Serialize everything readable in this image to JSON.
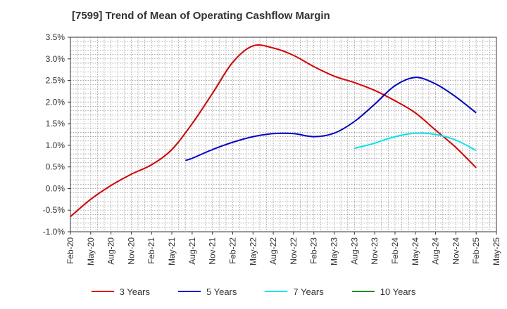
{
  "chart_data": {
    "type": "line",
    "title": "[7599]  Trend of Mean of Operating Cashflow Margin",
    "xlabel": "",
    "ylabel": "",
    "ylim": [
      -1.0,
      3.5
    ],
    "y_ticks": [
      "3.5%",
      "3.0%",
      "2.5%",
      "2.0%",
      "1.5%",
      "1.0%",
      "0.5%",
      "0.0%",
      "-0.5%",
      "-1.0%"
    ],
    "x_ticks": [
      "Feb-20",
      "May-20",
      "Aug-20",
      "Nov-20",
      "Feb-21",
      "May-21",
      "Aug-21",
      "Nov-21",
      "Feb-22",
      "May-22",
      "Aug-22",
      "Nov-22",
      "Feb-23",
      "May-23",
      "Aug-23",
      "Nov-23",
      "Feb-24",
      "May-24",
      "Aug-24",
      "Nov-24",
      "Feb-25",
      "May-25"
    ],
    "grid": true,
    "legend_position": "bottom",
    "series": [
      {
        "name": "3 Years",
        "color": "#dd0000",
        "points": [
          [
            "Feb-20",
            -0.65
          ],
          [
            "May-20",
            -0.25
          ],
          [
            "Aug-20",
            0.07
          ],
          [
            "Nov-20",
            0.33
          ],
          [
            "Feb-21",
            0.55
          ],
          [
            "May-21",
            0.9
          ],
          [
            "Aug-21",
            1.5
          ],
          [
            "Nov-21",
            2.2
          ],
          [
            "Feb-22",
            2.92
          ],
          [
            "May-22",
            3.3
          ],
          [
            "Aug-22",
            3.25
          ],
          [
            "Nov-22",
            3.08
          ],
          [
            "Feb-23",
            2.82
          ],
          [
            "May-23",
            2.6
          ],
          [
            "Aug-23",
            2.45
          ],
          [
            "Nov-23",
            2.27
          ],
          [
            "Feb-24",
            2.03
          ],
          [
            "May-24",
            1.75
          ],
          [
            "Aug-24",
            1.35
          ],
          [
            "Nov-24",
            0.95
          ],
          [
            "Feb-25",
            0.48
          ]
        ]
      },
      {
        "name": "5 Years",
        "color": "#0000cc",
        "points": [
          [
            "Jul-21",
            0.65
          ],
          [
            "Aug-21",
            0.7
          ],
          [
            "Nov-21",
            0.9
          ],
          [
            "Feb-22",
            1.07
          ],
          [
            "May-22",
            1.2
          ],
          [
            "Aug-22",
            1.27
          ],
          [
            "Nov-22",
            1.27
          ],
          [
            "Feb-23",
            1.2
          ],
          [
            "May-23",
            1.28
          ],
          [
            "Aug-23",
            1.55
          ],
          [
            "Nov-23",
            1.95
          ],
          [
            "Feb-24",
            2.38
          ],
          [
            "May-24",
            2.57
          ],
          [
            "Aug-24",
            2.42
          ],
          [
            "Nov-24",
            2.12
          ],
          [
            "Feb-25",
            1.75
          ]
        ]
      },
      {
        "name": "7 Years",
        "color": "#00e5ee",
        "points": [
          [
            "Aug-23",
            0.93
          ],
          [
            "Nov-23",
            1.05
          ],
          [
            "Feb-24",
            1.2
          ],
          [
            "May-24",
            1.28
          ],
          [
            "Aug-24",
            1.25
          ],
          [
            "Nov-24",
            1.12
          ],
          [
            "Feb-25",
            0.88
          ]
        ]
      },
      {
        "name": "10 Years",
        "color": "#228b22",
        "points": []
      }
    ]
  }
}
